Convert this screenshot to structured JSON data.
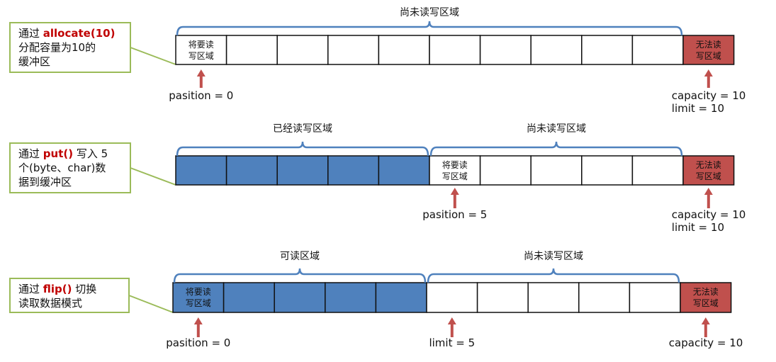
{
  "colors": {
    "filled": "#4f81bd",
    "empty": "#ffffff",
    "blocked": "#c0504d",
    "bracket": "#4f81bd",
    "arrow": "#c0504d",
    "callout_border": "#9bbb59"
  },
  "rows": [
    {
      "callout": {
        "lines": [
          [
            {
              "t": "通过 "
            },
            {
              "t": "allocate(10)",
              "red": true
            }
          ],
          [
            {
              "t": "分配容量为10的"
            }
          ],
          [
            {
              "t": "缓冲区"
            }
          ]
        ]
      },
      "cells": [
        "empty",
        "empty",
        "empty",
        "empty",
        "empty",
        "empty",
        "empty",
        "empty",
        "empty",
        "empty",
        "blocked"
      ],
      "cell_labels": {
        "0": [
          "将要读",
          "写区域"
        ],
        "10": [
          "无法读",
          "写区域"
        ]
      },
      "regions": [
        {
          "from": 0,
          "to": 10,
          "label": "尚未读写区域"
        }
      ],
      "pointers": [
        {
          "cell": 0,
          "lines": [
            "pasition = 0"
          ]
        },
        {
          "cell": 10,
          "lines": [
            "capacity = 10",
            "limit = 10"
          ]
        }
      ]
    },
    {
      "callout": {
        "lines": [
          [
            {
              "t": "通过 "
            },
            {
              "t": "put()",
              "red": true
            },
            {
              "t": " 写入 5"
            }
          ],
          [
            {
              "t": "个(byte、char)数"
            }
          ],
          [
            {
              "t": "据到缓冲区"
            }
          ]
        ]
      },
      "cells": [
        "filled",
        "filled",
        "filled",
        "filled",
        "filled",
        "empty",
        "empty",
        "empty",
        "empty",
        "empty",
        "blocked"
      ],
      "cell_labels": {
        "5": [
          "将要读",
          "写区域"
        ],
        "10": [
          "无法读",
          "写区域"
        ]
      },
      "regions": [
        {
          "from": 0,
          "to": 5,
          "label": "已经读写区域"
        },
        {
          "from": 5,
          "to": 10,
          "label": "尚未读写区域"
        }
      ],
      "pointers": [
        {
          "cell": 5,
          "lines": [
            "pasition = 5"
          ]
        },
        {
          "cell": 10,
          "lines": [
            "capacity = 10",
            "limit = 10"
          ]
        }
      ]
    },
    {
      "callout": {
        "lines": [
          [
            {
              "t": "通过 "
            },
            {
              "t": "flip()",
              "red": true
            },
            {
              "t": " 切换"
            }
          ],
          [
            {
              "t": "读取数据模式"
            }
          ]
        ]
      },
      "cells": [
        "filled",
        "filled",
        "filled",
        "filled",
        "filled",
        "empty",
        "empty",
        "empty",
        "empty",
        "empty",
        "blocked"
      ],
      "cell_labels": {
        "0": [
          "将要读",
          "写区域"
        ],
        "10": [
          "无法读",
          "写区域"
        ]
      },
      "regions": [
        {
          "from": 0,
          "to": 5,
          "label": "可读区域"
        },
        {
          "from": 5,
          "to": 10,
          "label": "尚未读写区域"
        }
      ],
      "pointers": [
        {
          "cell": 0,
          "lines": [
            "pasition = 0"
          ]
        },
        {
          "cell": 5,
          "lines": [
            "limit = 5"
          ]
        },
        {
          "cell": 10,
          "lines": [
            "capacity = 10"
          ]
        }
      ]
    }
  ]
}
